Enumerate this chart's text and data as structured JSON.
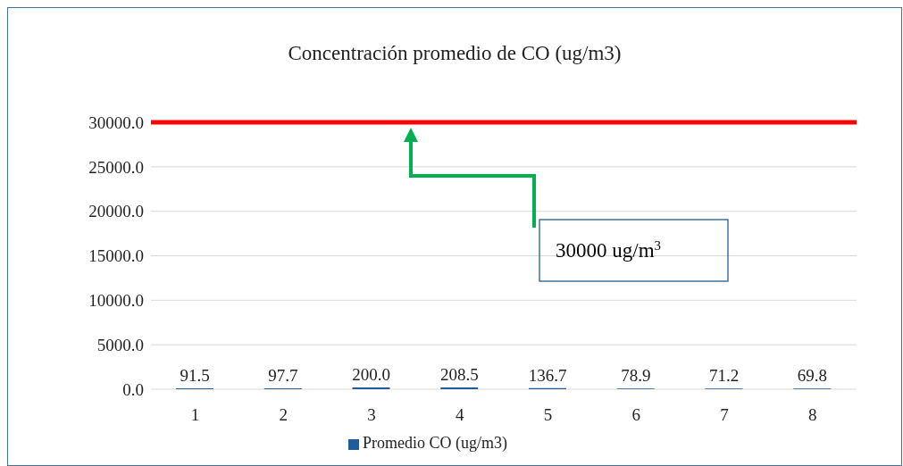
{
  "chart_data": {
    "type": "bar",
    "title": "Concentración promedio de CO (ug/m3)",
    "categories": [
      "1",
      "2",
      "3",
      "4",
      "5",
      "6",
      "7",
      "8"
    ],
    "series": [
      {
        "name": "Promedio CO (ug/m3)",
        "color": "#1f5c99",
        "values": [
          91.5,
          97.7,
          200.0,
          208.5,
          136.7,
          78.9,
          71.2,
          69.8
        ],
        "value_labels": [
          "91.5",
          "97.7",
          "200.0",
          "208.5",
          "136.7",
          "78.9",
          "71.2",
          "69.8"
        ]
      }
    ],
    "ylim": [
      0,
      30000
    ],
    "yticks": [
      {
        "value": 0,
        "label": "0.0"
      },
      {
        "value": 5000,
        "label": "5000.0"
      },
      {
        "value": 10000,
        "label": "10000.0"
      },
      {
        "value": 15000,
        "label": "15000.0"
      },
      {
        "value": 20000,
        "label": "20000.0"
      },
      {
        "value": 25000,
        "label": "25000.0"
      },
      {
        "value": 30000,
        "label": "30000.0"
      }
    ],
    "ref_lines": [
      {
        "axis": "y",
        "value": 30000,
        "color": "#ff0000"
      }
    ],
    "annotations": [
      "30000 ug/m$^{3}$"
    ],
    "grid": "y",
    "legend": "bottom"
  }
}
